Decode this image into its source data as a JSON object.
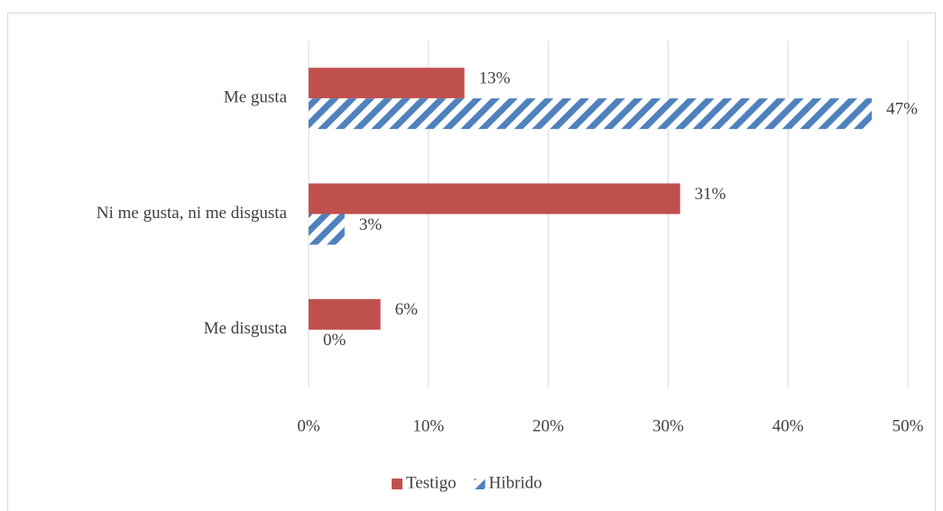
{
  "chart_data": {
    "type": "hbar",
    "categories": [
      "Me gusta",
      "Ni me gusta, ni me disgusta",
      "Me disgusta"
    ],
    "series": [
      {
        "name": "Testigo",
        "color": "#c0504d",
        "pattern": "solid",
        "values": [
          13,
          31,
          6
        ],
        "value_labels": [
          "13%",
          "31%",
          "6%"
        ]
      },
      {
        "name": "Hibrido",
        "color": "#4f81bd",
        "pattern": "hatch",
        "values": [
          47,
          3,
          0
        ],
        "value_labels": [
          "47%",
          "3%",
          "0%"
        ]
      }
    ],
    "xlim": [
      0,
      50
    ],
    "xticks": [
      {
        "value": 0,
        "label": "0%"
      },
      {
        "value": 10,
        "label": "10%"
      },
      {
        "value": 20,
        "label": "20%"
      },
      {
        "value": 30,
        "label": "30%"
      },
      {
        "value": 40,
        "label": "40%"
      },
      {
        "value": 50,
        "label": "50%"
      }
    ],
    "grid": true,
    "legend": "bottom"
  }
}
